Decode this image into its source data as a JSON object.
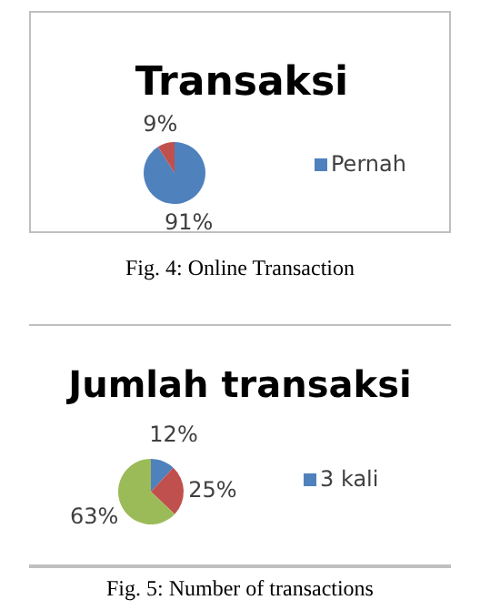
{
  "chart_data": [
    {
      "type": "pie",
      "title": "Transaksi",
      "categories": [
        "Pernah",
        null
      ],
      "values": [
        91,
        9
      ],
      "colors": [
        "#4f81bd",
        "#c0504d"
      ],
      "value_labels": [
        "91%",
        "9%"
      ],
      "legend": "right",
      "annotations": [
        "Fig. 4: Online Transaction"
      ]
    },
    {
      "type": "pie",
      "title": "Jumlah transaksi",
      "categories": [
        "3 kali",
        null,
        null
      ],
      "values": [
        12,
        25,
        63
      ],
      "colors": [
        "#4f81bd",
        "#c0504d",
        "#9bbb59"
      ],
      "value_labels": [
        "12%",
        "25%",
        "63%"
      ],
      "legend": "right",
      "annotations": [
        "Fig. 5: Number of transactions"
      ]
    }
  ]
}
